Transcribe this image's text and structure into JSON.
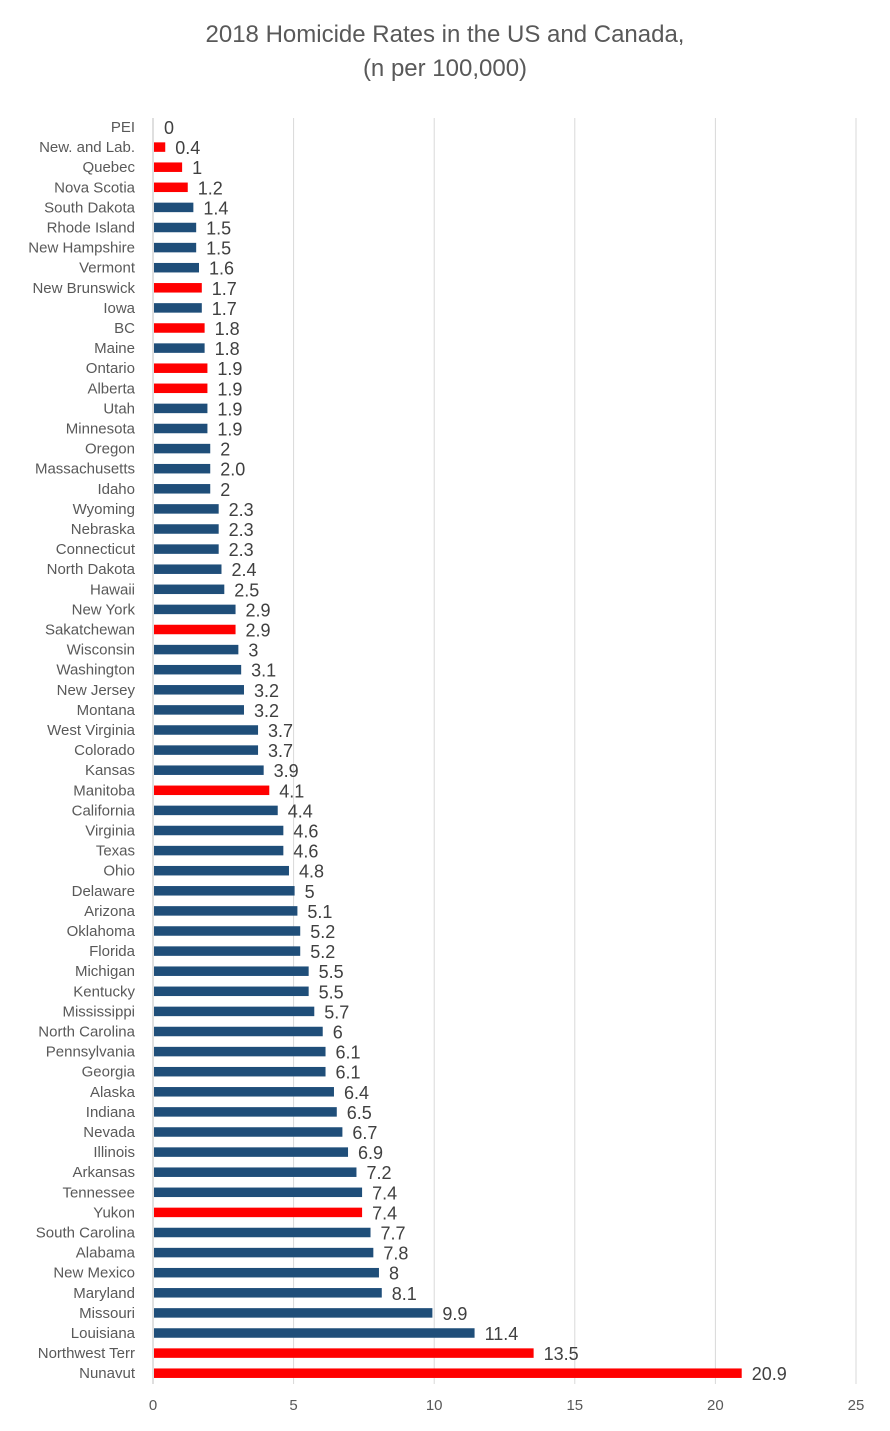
{
  "chart_data": {
    "type": "bar",
    "orientation": "horizontal",
    "title": "2018 Homicide Rates in the US and Canada,",
    "subtitle": "(n per 100,000)",
    "xlabel": "",
    "ylabel": "",
    "xlim": [
      0,
      25
    ],
    "x_ticks": [
      0,
      5,
      10,
      15,
      20,
      25
    ],
    "grid": true,
    "colors": {
      "us": "#1f4e79",
      "canada": "#ff0000",
      "grid": "#d9d9d9",
      "axis": "#bfbfbf"
    },
    "bars": [
      {
        "category": "PEI",
        "value": 0,
        "label": "0",
        "group": "canada"
      },
      {
        "category": "New. and Lab.",
        "value": 0.4,
        "label": "0.4",
        "group": "canada"
      },
      {
        "category": "Quebec",
        "value": 1,
        "label": "1",
        "group": "canada"
      },
      {
        "category": "Nova Scotia",
        "value": 1.2,
        "label": "1.2",
        "group": "canada"
      },
      {
        "category": "South Dakota",
        "value": 1.4,
        "label": "1.4",
        "group": "us"
      },
      {
        "category": "Rhode Island",
        "value": 1.5,
        "label": "1.5",
        "group": "us"
      },
      {
        "category": "New Hampshire",
        "value": 1.5,
        "label": "1.5",
        "group": "us"
      },
      {
        "category": "Vermont",
        "value": 1.6,
        "label": "1.6",
        "group": "us"
      },
      {
        "category": "New Brunswick",
        "value": 1.7,
        "label": "1.7",
        "group": "canada"
      },
      {
        "category": "Iowa",
        "value": 1.7,
        "label": "1.7",
        "group": "us"
      },
      {
        "category": "BC",
        "value": 1.8,
        "label": "1.8",
        "group": "canada"
      },
      {
        "category": "Maine",
        "value": 1.8,
        "label": "1.8",
        "group": "us"
      },
      {
        "category": "Ontario",
        "value": 1.9,
        "label": "1.9",
        "group": "canada"
      },
      {
        "category": "Alberta",
        "value": 1.9,
        "label": "1.9",
        "group": "canada"
      },
      {
        "category": "Utah",
        "value": 1.9,
        "label": "1.9",
        "group": "us"
      },
      {
        "category": "Minnesota",
        "value": 1.9,
        "label": "1.9",
        "group": "us"
      },
      {
        "category": "Oregon",
        "value": 2,
        "label": "2",
        "group": "us"
      },
      {
        "category": "Massachusetts",
        "value": 2.0,
        "label": "2.0",
        "group": "us"
      },
      {
        "category": "Idaho",
        "value": 2,
        "label": "2",
        "group": "us"
      },
      {
        "category": "Wyoming",
        "value": 2.3,
        "label": "2.3",
        "group": "us"
      },
      {
        "category": "Nebraska",
        "value": 2.3,
        "label": "2.3",
        "group": "us"
      },
      {
        "category": "Connecticut",
        "value": 2.3,
        "label": "2.3",
        "group": "us"
      },
      {
        "category": "North Dakota",
        "value": 2.4,
        "label": "2.4",
        "group": "us"
      },
      {
        "category": "Hawaii",
        "value": 2.5,
        "label": "2.5",
        "group": "us"
      },
      {
        "category": "New York",
        "value": 2.9,
        "label": "2.9",
        "group": "us"
      },
      {
        "category": "Sakatchewan",
        "value": 2.9,
        "label": "2.9",
        "group": "canada"
      },
      {
        "category": "Wisconsin",
        "value": 3,
        "label": "3",
        "group": "us"
      },
      {
        "category": "Washington",
        "value": 3.1,
        "label": "3.1",
        "group": "us"
      },
      {
        "category": "New Jersey",
        "value": 3.2,
        "label": "3.2",
        "group": "us"
      },
      {
        "category": "Montana",
        "value": 3.2,
        "label": "3.2",
        "group": "us"
      },
      {
        "category": "West Virginia",
        "value": 3.7,
        "label": "3.7",
        "group": "us"
      },
      {
        "category": "Colorado",
        "value": 3.7,
        "label": "3.7",
        "group": "us"
      },
      {
        "category": "Kansas",
        "value": 3.9,
        "label": "3.9",
        "group": "us"
      },
      {
        "category": "Manitoba",
        "value": 4.1,
        "label": "4.1",
        "group": "canada"
      },
      {
        "category": "California",
        "value": 4.4,
        "label": "4.4",
        "group": "us"
      },
      {
        "category": "Virginia",
        "value": 4.6,
        "label": "4.6",
        "group": "us"
      },
      {
        "category": "Texas",
        "value": 4.6,
        "label": "4.6",
        "group": "us"
      },
      {
        "category": "Ohio",
        "value": 4.8,
        "label": "4.8",
        "group": "us"
      },
      {
        "category": "Delaware",
        "value": 5,
        "label": "5",
        "group": "us"
      },
      {
        "category": "Arizona",
        "value": 5.1,
        "label": "5.1",
        "group": "us"
      },
      {
        "category": "Oklahoma",
        "value": 5.2,
        "label": "5.2",
        "group": "us"
      },
      {
        "category": "Florida",
        "value": 5.2,
        "label": "5.2",
        "group": "us"
      },
      {
        "category": "Michigan",
        "value": 5.5,
        "label": "5.5",
        "group": "us"
      },
      {
        "category": "Kentucky",
        "value": 5.5,
        "label": "5.5",
        "group": "us"
      },
      {
        "category": "Mississippi",
        "value": 5.7,
        "label": "5.7",
        "group": "us"
      },
      {
        "category": "North Carolina",
        "value": 6,
        "label": "6",
        "group": "us"
      },
      {
        "category": "Pennsylvania",
        "value": 6.1,
        "label": "6.1",
        "group": "us"
      },
      {
        "category": "Georgia",
        "value": 6.1,
        "label": "6.1",
        "group": "us"
      },
      {
        "category": "Alaska",
        "value": 6.4,
        "label": "6.4",
        "group": "us"
      },
      {
        "category": "Indiana",
        "value": 6.5,
        "label": "6.5",
        "group": "us"
      },
      {
        "category": "Nevada",
        "value": 6.7,
        "label": "6.7",
        "group": "us"
      },
      {
        "category": "Illinois",
        "value": 6.9,
        "label": "6.9",
        "group": "us"
      },
      {
        "category": "Arkansas",
        "value": 7.2,
        "label": "7.2",
        "group": "us"
      },
      {
        "category": "Tennessee",
        "value": 7.4,
        "label": "7.4",
        "group": "us"
      },
      {
        "category": "Yukon",
        "value": 7.4,
        "label": "7.4",
        "group": "canada"
      },
      {
        "category": "South Carolina",
        "value": 7.7,
        "label": "7.7",
        "group": "us"
      },
      {
        "category": "Alabama",
        "value": 7.8,
        "label": "7.8",
        "group": "us"
      },
      {
        "category": "New Mexico",
        "value": 8,
        "label": "8",
        "group": "us"
      },
      {
        "category": "Maryland",
        "value": 8.1,
        "label": "8.1",
        "group": "us"
      },
      {
        "category": "Missouri",
        "value": 9.9,
        "label": "9.9",
        "group": "us"
      },
      {
        "category": "Louisiana",
        "value": 11.4,
        "label": "11.4",
        "group": "us"
      },
      {
        "category": "Northwest Terr",
        "value": 13.5,
        "label": "13.5",
        "group": "canada"
      },
      {
        "category": "Nunavut",
        "value": 20.9,
        "label": "20.9",
        "group": "canada"
      }
    ]
  }
}
